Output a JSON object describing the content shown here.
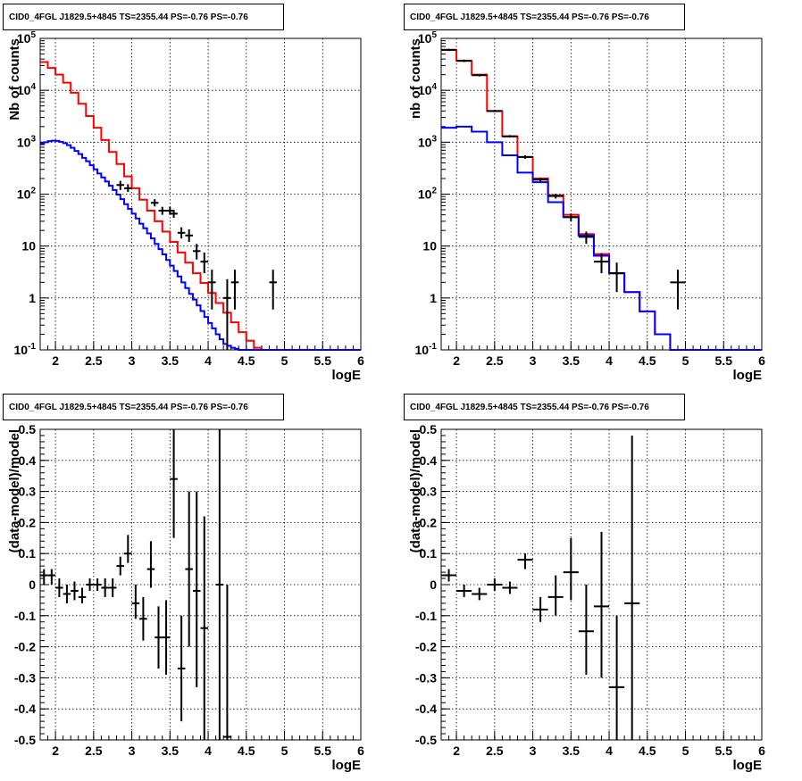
{
  "title": "CID0_4FGL J1829.5+4845 TS=2355.44 PS=-0.76 PS=-0.76",
  "chart_data": [
    {
      "type": "line",
      "title": "CID0_4FGL J1829.5+4845 TS=2355.44 PS=-0.76 PS=-0.76",
      "xlabel": "logE",
      "ylabel": "Nb of counts",
      "scale": "log",
      "grid": true,
      "xlim": [
        1.8,
        6
      ],
      "ylim": [
        0.1,
        100000
      ],
      "xticks": [
        "2",
        "2.5",
        "3",
        "3.5",
        "4",
        "4.5",
        "5",
        "5.5",
        "6"
      ],
      "yticks": [
        "10^-1",
        "1",
        "10",
        "10^2",
        "10^3",
        "10^4",
        "10^5"
      ],
      "series": [
        {
          "color": "#ff0000",
          "style": "step",
          "edges": [
            1.8,
            1.9,
            2.0,
            2.1,
            2.2,
            2.3,
            2.4,
            2.5,
            2.6,
            2.7,
            2.8,
            2.9,
            3.0,
            3.1,
            3.2,
            3.3,
            3.4,
            3.5,
            3.6,
            3.7,
            3.8,
            3.9,
            4.0,
            4.1,
            4.2,
            4.3,
            4.4,
            4.5,
            4.6,
            4.7,
            4.8,
            4.9,
            5.0,
            6.0
          ],
          "values": [
            35000,
            27000,
            20000,
            14000,
            9000,
            5500,
            3200,
            1900,
            1100,
            650,
            380,
            220,
            130,
            78,
            48,
            30,
            19,
            12,
            7.5,
            4.8,
            3.0,
            1.95,
            1.25,
            0.8,
            0.52,
            0.34,
            0.22,
            0.15,
            0.11,
            0.1,
            0.1,
            0.1,
            0.1
          ]
        },
        {
          "color": "#0000ff",
          "style": "step",
          "edges": [
            1.8,
            1.85,
            1.9,
            1.95,
            2.0,
            2.05,
            2.1,
            2.15,
            2.2,
            2.25,
            2.3,
            2.35,
            2.4,
            2.45,
            2.5,
            2.55,
            2.6,
            2.65,
            2.7,
            2.75,
            2.8,
            2.85,
            2.9,
            2.95,
            3.0,
            3.05,
            3.1,
            3.15,
            3.2,
            3.25,
            3.3,
            3.35,
            3.4,
            3.45,
            3.5,
            3.55,
            3.6,
            3.65,
            3.7,
            3.75,
            3.8,
            3.85,
            3.9,
            3.95,
            4.0,
            4.05,
            4.1,
            4.15,
            4.2,
            4.25,
            4.3,
            4.35,
            4.4,
            4.45,
            4.5,
            4.55,
            4.6,
            4.65,
            4.7,
            6.0
          ],
          "values": [
            950,
            1000,
            1050,
            1070,
            1060,
            1020,
            960,
            880,
            780,
            680,
            590,
            500,
            430,
            360,
            300,
            250,
            210,
            175,
            145,
            120,
            98,
            80,
            64,
            52,
            42,
            34,
            27,
            22,
            17.5,
            14,
            11,
            8.7,
            6.9,
            5.4,
            4.2,
            3.3,
            2.6,
            2.0,
            1.55,
            1.2,
            0.93,
            0.72,
            0.56,
            0.43,
            0.33,
            0.26,
            0.2,
            0.16,
            0.13,
            0.12,
            0.11,
            0.105,
            0.1,
            0.1,
            0.1,
            0.1,
            0.1,
            0.1,
            0.1
          ]
        },
        {
          "color": "#000000",
          "style": "points",
          "points": [
            {
              "x": 2.85,
              "y": 150,
              "xerr": 0.05,
              "ylo": 120,
              "yhi": 180
            },
            {
              "x": 2.95,
              "y": 130,
              "xerr": 0.05,
              "ylo": 110,
              "yhi": 155
            },
            {
              "x": 3.3,
              "y": 68,
              "xerr": 0.05,
              "ylo": 58,
              "yhi": 80
            },
            {
              "x": 3.4,
              "y": 48,
              "xerr": 0.05,
              "ylo": 40,
              "yhi": 57
            },
            {
              "x": 3.5,
              "y": 48,
              "xerr": 0.05,
              "ylo": 40,
              "yhi": 57
            },
            {
              "x": 3.55,
              "y": 42,
              "xerr": 0.05,
              "ylo": 35,
              "yhi": 50
            },
            {
              "x": 3.65,
              "y": 18,
              "xerr": 0.05,
              "ylo": 14,
              "yhi": 23
            },
            {
              "x": 3.75,
              "y": 16,
              "xerr": 0.05,
              "ylo": 12,
              "yhi": 21
            },
            {
              "x": 3.85,
              "y": 8,
              "xerr": 0.05,
              "ylo": 5.5,
              "yhi": 11
            },
            {
              "x": 3.95,
              "y": 5,
              "xerr": 0.05,
              "ylo": 3,
              "yhi": 7.5
            },
            {
              "x": 4.05,
              "y": 2,
              "xerr": 0.05,
              "ylo": 0.6,
              "yhi": 3.5
            },
            {
              "x": 4.25,
              "y": 1,
              "xerr": 0.05,
              "ylo": 0.1,
              "yhi": 2.3
            },
            {
              "x": 4.35,
              "y": 2,
              "xerr": 0.05,
              "ylo": 0.6,
              "yhi": 3.5
            },
            {
              "x": 4.85,
              "y": 2,
              "xerr": 0.05,
              "ylo": 0.6,
              "yhi": 3.5
            }
          ]
        }
      ]
    },
    {
      "type": "line",
      "title": "CID0_4FGL J1829.5+4845 TS=2355.44 PS=-0.76 PS=-0.76",
      "xlabel": "logE",
      "ylabel": "nb of counts",
      "scale": "log",
      "grid": true,
      "xlim": [
        1.8,
        6
      ],
      "ylim": [
        0.1,
        100000
      ],
      "xticks": [
        "2",
        "2.5",
        "3",
        "3.5",
        "4",
        "4.5",
        "5",
        "5.5",
        "6"
      ],
      "yticks": [
        "10^-1",
        "1",
        "10",
        "10^2",
        "10^3",
        "10^4",
        "10^5"
      ],
      "series": [
        {
          "color": "#ff0000",
          "style": "step",
          "edges": [
            1.8,
            2.0,
            2.2,
            2.4,
            2.6,
            2.8,
            3.0,
            3.2,
            3.4,
            3.6,
            3.8,
            4.0,
            4.2,
            4.4,
            4.6,
            4.8,
            5.0,
            6.0
          ],
          "values": [
            60000,
            37000,
            20000,
            4000,
            1300,
            520,
            200,
            95,
            40,
            17,
            7,
            3,
            1.3,
            0.55,
            0.2,
            0.1,
            0.1
          ]
        },
        {
          "color": "#0000ff",
          "style": "step",
          "edges": [
            1.8,
            2.0,
            2.2,
            2.4,
            2.6,
            2.8,
            3.0,
            3.2,
            3.4,
            3.6,
            3.8,
            4.0,
            4.2,
            4.4,
            4.6,
            4.8,
            5.0,
            6.0
          ],
          "values": [
            1900,
            2000,
            1600,
            1000,
            560,
            260,
            170,
            70,
            36,
            16,
            6.5,
            3,
            1.3,
            0.55,
            0.2,
            0.1,
            0.1
          ]
        },
        {
          "color": "#000000",
          "style": "points",
          "points": [
            {
              "x": 1.9,
              "y": 60000,
              "xerr": 0.1,
              "ylo": 57000,
              "yhi": 63000
            },
            {
              "x": 2.1,
              "y": 37000,
              "xerr": 0.1,
              "ylo": 35000,
              "yhi": 39000
            },
            {
              "x": 2.3,
              "y": 19500,
              "xerr": 0.1,
              "ylo": 18500,
              "yhi": 20500
            },
            {
              "x": 2.5,
              "y": 4000,
              "xerr": 0.1,
              "ylo": 3800,
              "yhi": 4200
            },
            {
              "x": 2.7,
              "y": 1300,
              "xerr": 0.1,
              "ylo": 1230,
              "yhi": 1370
            },
            {
              "x": 2.9,
              "y": 520,
              "xerr": 0.1,
              "ylo": 480,
              "yhi": 560
            },
            {
              "x": 3.1,
              "y": 190,
              "xerr": 0.1,
              "ylo": 175,
              "yhi": 205
            },
            {
              "x": 3.3,
              "y": 92,
              "xerr": 0.1,
              "ylo": 82,
              "yhi": 102
            },
            {
              "x": 3.5,
              "y": 36,
              "xerr": 0.1,
              "ylo": 30,
              "yhi": 42
            },
            {
              "x": 3.7,
              "y": 15,
              "xerr": 0.1,
              "ylo": 11,
              "yhi": 19
            },
            {
              "x": 3.9,
              "y": 5,
              "xerr": 0.1,
              "ylo": 3,
              "yhi": 7.3
            },
            {
              "x": 4.1,
              "y": 3,
              "xerr": 0.1,
              "ylo": 1.3,
              "yhi": 4.8
            },
            {
              "x": 4.9,
              "y": 2,
              "xerr": 0.1,
              "ylo": 0.6,
              "yhi": 3.5
            }
          ]
        }
      ]
    },
    {
      "type": "scatter",
      "title": "CID0_4FGL J1829.5+4845 TS=2355.44 PS=-0.76 PS=-0.76",
      "xlabel": "logE",
      "ylabel": "(data-model)/model",
      "grid": true,
      "xlim": [
        1.8,
        6
      ],
      "ylim": [
        -0.5,
        0.5
      ],
      "xticks": [
        "2",
        "2.5",
        "3",
        "3.5",
        "4",
        "4.5",
        "5",
        "5.5",
        "6"
      ],
      "yticks": [
        "-0.5",
        "-0.4",
        "-0.3",
        "-0.2",
        "-0.1",
        "0",
        "0.1",
        "0.2",
        "0.3",
        "0.4",
        "0.5"
      ],
      "series": [
        {
          "color": "#000000",
          "points": [
            {
              "x": 1.85,
              "y": 0.03,
              "xerr": 0.05,
              "ylo": 0.0,
              "yhi": 0.05
            },
            {
              "x": 1.95,
              "y": 0.03,
              "xerr": 0.05,
              "ylo": 0.0,
              "yhi": 0.05
            },
            {
              "x": 2.05,
              "y": -0.01,
              "xerr": 0.05,
              "ylo": -0.04,
              "yhi": 0.02
            },
            {
              "x": 2.15,
              "y": -0.03,
              "xerr": 0.05,
              "ylo": -0.06,
              "yhi": 0.0
            },
            {
              "x": 2.25,
              "y": -0.02,
              "xerr": 0.05,
              "ylo": -0.05,
              "yhi": 0.01
            },
            {
              "x": 2.35,
              "y": -0.04,
              "xerr": 0.05,
              "ylo": -0.06,
              "yhi": -0.01
            },
            {
              "x": 2.45,
              "y": 0.0,
              "xerr": 0.05,
              "ylo": -0.02,
              "yhi": 0.02
            },
            {
              "x": 2.55,
              "y": 0.0,
              "xerr": 0.05,
              "ylo": -0.02,
              "yhi": 0.02
            },
            {
              "x": 2.65,
              "y": -0.01,
              "xerr": 0.05,
              "ylo": -0.04,
              "yhi": 0.02
            },
            {
              "x": 2.75,
              "y": -0.01,
              "xerr": 0.05,
              "ylo": -0.04,
              "yhi": 0.02
            },
            {
              "x": 2.85,
              "y": 0.06,
              "xerr": 0.05,
              "ylo": 0.03,
              "yhi": 0.09
            },
            {
              "x": 2.95,
              "y": 0.1,
              "xerr": 0.05,
              "ylo": 0.07,
              "yhi": 0.16
            },
            {
              "x": 3.05,
              "y": -0.06,
              "xerr": 0.05,
              "ylo": -0.11,
              "yhi": 0.0
            },
            {
              "x": 3.15,
              "y": -0.11,
              "xerr": 0.05,
              "ylo": -0.18,
              "yhi": -0.04
            },
            {
              "x": 3.25,
              "y": 0.05,
              "xerr": 0.05,
              "ylo": -0.01,
              "yhi": 0.14
            },
            {
              "x": 3.35,
              "y": -0.17,
              "xerr": 0.05,
              "ylo": -0.27,
              "yhi": -0.07
            },
            {
              "x": 3.45,
              "y": -0.17,
              "xerr": 0.05,
              "ylo": -0.29,
              "yhi": -0.05
            },
            {
              "x": 3.55,
              "y": 0.34,
              "xerr": 0.05,
              "ylo": 0.15,
              "yhi": 0.5
            },
            {
              "x": 3.65,
              "y": -0.27,
              "xerr": 0.05,
              "ylo": -0.44,
              "yhi": -0.1
            },
            {
              "x": 3.75,
              "y": 0.05,
              "xerr": 0.05,
              "ylo": -0.2,
              "yhi": 0.3
            },
            {
              "x": 3.85,
              "y": -0.02,
              "xerr": 0.05,
              "ylo": -0.33,
              "yhi": 0.3
            },
            {
              "x": 3.95,
              "y": -0.14,
              "xerr": 0.05,
              "ylo": -0.5,
              "yhi": 0.22
            },
            {
              "x": 4.15,
              "y": 0.0,
              "xerr": 0.05,
              "ylo": -0.5,
              "yhi": 0.5
            },
            {
              "x": 4.25,
              "y": -0.49,
              "xerr": 0.05,
              "ylo": -0.5,
              "yhi": 0.0
            }
          ]
        }
      ]
    },
    {
      "type": "scatter",
      "title": "CID0_4FGL J1829.5+4845 TS=2355.44 PS=-0.76 PS=-0.76",
      "xlabel": "logE",
      "ylabel": "(data-model)/model",
      "grid": true,
      "xlim": [
        1.8,
        6
      ],
      "ylim": [
        -0.5,
        0.5
      ],
      "xticks": [
        "2",
        "2.5",
        "3",
        "3.5",
        "4",
        "4.5",
        "5",
        "5.5",
        "6"
      ],
      "yticks": [
        "-0.5",
        "-0.4",
        "-0.3",
        "-0.2",
        "-0.1",
        "0",
        "0.1",
        "0.2",
        "0.3",
        "0.4",
        "0.5"
      ],
      "series": [
        {
          "color": "#000000",
          "points": [
            {
              "x": 1.9,
              "y": 0.03,
              "xerr": 0.1,
              "ylo": 0.01,
              "yhi": 0.05
            },
            {
              "x": 2.1,
              "y": -0.02,
              "xerr": 0.1,
              "ylo": -0.04,
              "yhi": 0.0
            },
            {
              "x": 2.3,
              "y": -0.03,
              "xerr": 0.1,
              "ylo": -0.05,
              "yhi": -0.01
            },
            {
              "x": 2.5,
              "y": 0.0,
              "xerr": 0.1,
              "ylo": -0.02,
              "yhi": 0.02
            },
            {
              "x": 2.7,
              "y": -0.01,
              "xerr": 0.1,
              "ylo": -0.03,
              "yhi": 0.01
            },
            {
              "x": 2.9,
              "y": 0.08,
              "xerr": 0.1,
              "ylo": 0.05,
              "yhi": 0.1
            },
            {
              "x": 3.1,
              "y": -0.08,
              "xerr": 0.1,
              "ylo": -0.12,
              "yhi": -0.04
            },
            {
              "x": 3.3,
              "y": -0.04,
              "xerr": 0.1,
              "ylo": -0.1,
              "yhi": 0.03
            },
            {
              "x": 3.5,
              "y": 0.04,
              "xerr": 0.1,
              "ylo": -0.05,
              "yhi": 0.15
            },
            {
              "x": 3.7,
              "y": -0.15,
              "xerr": 0.1,
              "ylo": -0.29,
              "yhi": 0.0
            },
            {
              "x": 3.9,
              "y": -0.07,
              "xerr": 0.1,
              "ylo": -0.3,
              "yhi": 0.17
            },
            {
              "x": 4.1,
              "y": -0.33,
              "xerr": 0.1,
              "ylo": -0.5,
              "yhi": -0.1
            },
            {
              "x": 4.3,
              "y": -0.06,
              "xerr": 0.1,
              "ylo": -0.5,
              "yhi": 0.48
            }
          ]
        }
      ]
    }
  ]
}
